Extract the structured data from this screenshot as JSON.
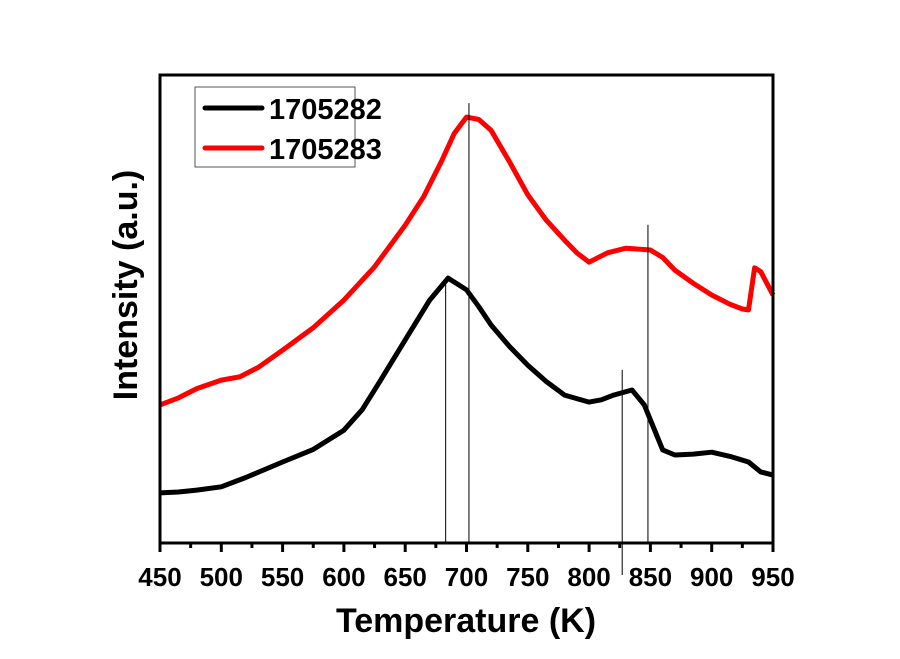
{
  "chart_data": {
    "type": "line",
    "title": "",
    "xlabel": "Temperature (K)",
    "ylabel": "Intensity (a.u.)",
    "xlim": [
      450,
      950
    ],
    "ylim": [
      0,
      100
    ],
    "xticks": [
      450,
      500,
      550,
      600,
      650,
      700,
      750,
      800,
      850,
      900,
      950
    ],
    "yticks_shown": false,
    "grid": false,
    "legend_position": "top-left",
    "series": [
      {
        "name": "1705282",
        "color": "#000000",
        "x": [
          450,
          465,
          480,
          500,
          520,
          550,
          575,
          600,
          615,
          630,
          650,
          670,
          685,
          700,
          710,
          720,
          735,
          750,
          765,
          780,
          800,
          810,
          820,
          835,
          845,
          852,
          860,
          870,
          885,
          900,
          915,
          930,
          940,
          950
        ],
        "y": [
          10.7,
          10.9,
          11.3,
          12.0,
          14.0,
          17.3,
          20.0,
          24.1,
          28.5,
          34.8,
          43.4,
          51.9,
          56.6,
          54.1,
          50.5,
          46.6,
          42.0,
          38.0,
          34.5,
          31.6,
          30.1,
          30.6,
          31.6,
          32.7,
          29.5,
          25.0,
          19.9,
          18.8,
          19.0,
          19.4,
          18.5,
          17.3,
          15.2,
          14.5
        ]
      },
      {
        "name": "1705283",
        "color": "#ff0000",
        "x": [
          450,
          465,
          480,
          500,
          515,
          530,
          550,
          575,
          600,
          625,
          650,
          665,
          680,
          690,
          700,
          710,
          720,
          735,
          750,
          765,
          780,
          790,
          800,
          815,
          830,
          850,
          860,
          870,
          885,
          900,
          915,
          925,
          930,
          935,
          940,
          950
        ],
        "y": [
          29.5,
          31.0,
          33.0,
          34.8,
          35.5,
          37.5,
          41.2,
          46.0,
          51.9,
          59.0,
          67.9,
          74.0,
          81.8,
          87.5,
          91.0,
          90.5,
          88.2,
          81.5,
          74.4,
          69.0,
          64.7,
          62.0,
          60.0,
          62.0,
          63.0,
          62.6,
          61.0,
          58.3,
          55.5,
          53.0,
          51.0,
          50.0,
          49.8,
          58.8,
          58.0,
          53.0
        ]
      }
    ],
    "annotations": {
      "vertical_lines": [
        {
          "x": 683,
          "top": 56
        },
        {
          "x": 702,
          "top": 94
        },
        {
          "x": 827,
          "top": 37,
          "extends_below_axis": true
        },
        {
          "x": 848,
          "top": 68
        }
      ]
    }
  }
}
